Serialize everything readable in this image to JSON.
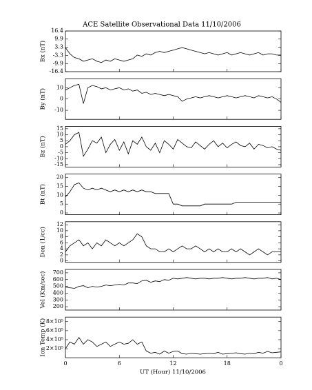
{
  "chart_data": {
    "title": "ACE Satellite Observational Data   11/10/2006",
    "xlabel": "UT (Hour)  11/10/2006",
    "xlim": [
      0,
      24
    ],
    "xticks": [
      0,
      6,
      12,
      18,
      {
        "value": 24,
        "label": "0"
      }
    ],
    "x": [
      0,
      0.5,
      1,
      1.5,
      2,
      2.5,
      3,
      3.5,
      4,
      4.5,
      5,
      5.5,
      6,
      6.5,
      7,
      7.5,
      8,
      8.5,
      9,
      9.5,
      10,
      10.5,
      11,
      11.5,
      12,
      12.5,
      13,
      13.5,
      14,
      14.5,
      15,
      15.5,
      16,
      16.5,
      17,
      17.5,
      18,
      18.5,
      19,
      19.5,
      20,
      20.5,
      21,
      21.5,
      22,
      22.5,
      23,
      23.5,
      24
    ],
    "panels": [
      {
        "type": "line",
        "ylabel": "Bx (nT)",
        "color": "#000000",
        "ylim": [
          -16.4,
          16.4
        ],
        "yticks": [
          16.4,
          9.9,
          3.3,
          -3.3,
          -9.9,
          -16.4
        ],
        "values": [
          3,
          -2,
          -5,
          -6,
          -8,
          -7,
          -6,
          -8,
          -9,
          -7,
          -8,
          -6,
          -7,
          -8,
          -7,
          -6,
          -3,
          -4,
          -2,
          -3,
          -1,
          0,
          -1,
          0,
          1,
          2,
          3,
          2,
          1,
          0,
          -1,
          -2,
          -1,
          -2,
          -3,
          -2,
          -1,
          -3,
          -2,
          -1,
          -2,
          -3,
          -2,
          -1,
          -3,
          -2,
          -2,
          -3,
          -3
        ]
      },
      {
        "type": "line",
        "ylabel": "By (nT)",
        "color": "#000000",
        "ylim": [
          -18,
          18
        ],
        "yticks": [
          10,
          0,
          -10
        ],
        "values": [
          8,
          10,
          12,
          13,
          -4,
          10,
          12,
          11,
          9,
          10,
          8,
          9,
          10,
          8,
          9,
          7,
          8,
          5,
          6,
          4,
          5,
          4,
          3,
          4,
          3,
          2,
          -2,
          0,
          1,
          2,
          1,
          2,
          3,
          2,
          1,
          2,
          3,
          2,
          1,
          2,
          3,
          2,
          1,
          3,
          2,
          1,
          2,
          0,
          -3
        ]
      },
      {
        "type": "line",
        "ylabel": "Bz (nT)",
        "color": "#000000",
        "ylim": [
          -17,
          17
        ],
        "yticks": [
          15,
          10,
          5,
          0,
          -5,
          -10,
          -15
        ],
        "values": [
          2,
          5,
          10,
          12,
          -8,
          -2,
          5,
          3,
          8,
          -5,
          2,
          6,
          -3,
          4,
          -6,
          5,
          2,
          8,
          0,
          -3,
          3,
          -5,
          5,
          2,
          -2,
          6,
          3,
          0,
          -1,
          4,
          1,
          -2,
          2,
          5,
          0,
          3,
          -1,
          2,
          4,
          1,
          0,
          3,
          -2,
          2,
          1,
          -1,
          0,
          -2,
          -3
        ]
      },
      {
        "type": "line",
        "ylabel": "Bt (nT)",
        "color": "#000000",
        "ylim": [
          -1,
          22
        ],
        "yticks": [
          20,
          15,
          10,
          5,
          0
        ],
        "values": [
          9,
          12,
          16,
          17,
          14,
          13,
          14,
          13,
          14,
          13,
          12,
          13,
          12,
          13,
          12,
          13,
          12,
          13,
          12,
          12,
          11,
          11,
          11,
          11,
          5,
          5,
          4,
          4,
          4,
          4,
          4,
          5,
          5,
          5,
          5,
          5,
          5,
          5,
          6,
          6,
          6,
          6,
          6,
          6,
          6,
          6,
          6,
          6,
          6
        ]
      },
      {
        "type": "line",
        "ylabel": "Den (1/cc)",
        "color": "#000000",
        "ylim": [
          -0.5,
          13
        ],
        "yticks": [
          12,
          10,
          8,
          6,
          4,
          2,
          0
        ],
        "values": [
          3,
          5,
          6,
          7,
          5,
          6,
          4,
          6,
          5,
          7,
          6,
          5,
          6,
          5,
          6,
          7,
          9,
          8,
          5,
          4,
          4,
          3,
          3,
          4,
          3,
          4,
          5,
          4,
          4,
          5,
          4,
          3,
          4,
          3,
          4,
          3,
          3,
          4,
          3,
          4,
          3,
          2,
          3,
          4,
          3,
          2,
          3,
          3,
          3
        ]
      },
      {
        "type": "line",
        "ylabel": "Vel (Km/sec)",
        "color": "#000000",
        "ylim": [
          150,
          750
        ],
        "yticks": [
          700,
          600,
          500,
          400,
          300,
          200
        ],
        "values": [
          490,
          480,
          470,
          500,
          510,
          480,
          500,
          490,
          500,
          520,
          510,
          520,
          530,
          520,
          550,
          550,
          540,
          580,
          590,
          560,
          580,
          570,
          600,
          590,
          620,
          610,
          620,
          630,
          620,
          610,
          620,
          620,
          610,
          620,
          620,
          630,
          620,
          610,
          620,
          620,
          630,
          620,
          610,
          620,
          620,
          630,
          610,
          620,
          600
        ]
      },
      {
        "type": "line",
        "ylabel": "Ion Temp (K)",
        "color": "#000000",
        "ylim": [
          0,
          900000
        ],
        "yticks": [
          {
            "value": 800000,
            "label": "8×10⁵"
          },
          {
            "value": 600000,
            "label": "6×10⁵"
          },
          {
            "value": 400000,
            "label": "4×10⁵"
          },
          {
            "value": 200000,
            "label": "2×10⁵"
          }
        ],
        "values": [
          200000,
          350000,
          300000,
          450000,
          300000,
          400000,
          350000,
          250000,
          300000,
          350000,
          250000,
          300000,
          350000,
          300000,
          320000,
          400000,
          300000,
          350000,
          150000,
          100000,
          120000,
          80000,
          150000,
          100000,
          140000,
          150000,
          90000,
          80000,
          100000,
          90000,
          80000,
          90000,
          100000,
          90000,
          120000,
          80000,
          90000,
          100000,
          110000,
          90000,
          80000,
          100000,
          90000,
          120000,
          100000,
          140000,
          110000,
          120000,
          130000
        ]
      }
    ]
  }
}
